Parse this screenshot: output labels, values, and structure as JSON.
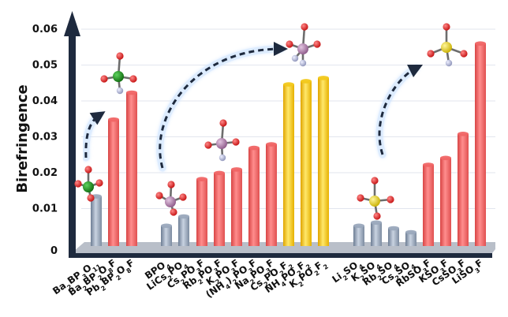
{
  "chart_data": {
    "type": "bar",
    "ylabel": "Birefringence",
    "ylim": [
      0,
      0.06
    ],
    "ytick_labels": [
      "0",
      "0.01",
      "0.02",
      "0.03",
      "0.04",
      "0.05",
      "0.06"
    ],
    "yticks": [
      0,
      0.01,
      0.02,
      0.03,
      0.04,
      0.05,
      0.06
    ],
    "grid": true,
    "legend": "none",
    "colors": {
      "gray": "#9aa8bc",
      "red": "#f06565",
      "gold": "#f2c81a",
      "axis": "#1e2a3e"
    },
    "categories": [
      "Ba2BP3O11",
      "Ba2BP2O8F",
      "Pb2BP2O8F",
      "BPO4",
      "LiCs2PO4",
      "Cs2PO3F",
      "Rb2PO3F",
      "K2PO3F",
      "(NH4)2PO3F",
      "Na2PO3F",
      "Cs2PO2F2",
      "NH4PO2F2",
      "K2PO2F2",
      "Li2SO4",
      "K2SO4",
      "Rb2SO4",
      "Cs2SO4",
      "RbSO3F",
      "KSO3F",
      "CsSO3F",
      "LiSO3F"
    ],
    "labels": [
      {
        "base": "Ba",
        "parts": [
          [
            "2",
            true
          ],
          [
            "BP",
            false
          ],
          [
            "3",
            true
          ],
          [
            "O",
            false
          ],
          [
            "11",
            true
          ]
        ]
      },
      {
        "base": "Ba",
        "parts": [
          [
            "2",
            true
          ],
          [
            "BP",
            false
          ],
          [
            "2",
            true
          ],
          [
            "O",
            false
          ],
          [
            "8",
            true
          ],
          [
            "F",
            false
          ]
        ]
      },
      {
        "base": "Pb",
        "parts": [
          [
            "2",
            true
          ],
          [
            "BP",
            false
          ],
          [
            "2",
            true
          ],
          [
            "O",
            false
          ],
          [
            "8",
            true
          ],
          [
            "F",
            false
          ]
        ]
      },
      {
        "base": "BPO",
        "parts": [
          [
            "4",
            true
          ]
        ]
      },
      {
        "base": "LiCs",
        "parts": [
          [
            "2",
            true
          ],
          [
            "PO",
            false
          ],
          [
            "4",
            true
          ]
        ]
      },
      {
        "base": "Cs",
        "parts": [
          [
            "2",
            true
          ],
          [
            "PO",
            false
          ],
          [
            "3",
            true
          ],
          [
            "F",
            false
          ]
        ]
      },
      {
        "base": "Rb",
        "parts": [
          [
            "2",
            true
          ],
          [
            "PO",
            false
          ],
          [
            "3",
            true
          ],
          [
            "F",
            false
          ]
        ]
      },
      {
        "base": "K",
        "parts": [
          [
            "2",
            true
          ],
          [
            "PO",
            false
          ],
          [
            "3",
            true
          ],
          [
            "F",
            false
          ]
        ]
      },
      {
        "base": "(NH",
        "parts": [
          [
            "4",
            true
          ],
          [
            ")",
            false
          ],
          [
            "2",
            true
          ],
          [
            "PO",
            false
          ],
          [
            "3",
            true
          ],
          [
            "F",
            false
          ]
        ]
      },
      {
        "base": "Na",
        "parts": [
          [
            "2",
            true
          ],
          [
            "PO",
            false
          ],
          [
            "3",
            true
          ],
          [
            "F",
            false
          ]
        ]
      },
      {
        "base": "Cs",
        "parts": [
          [
            "2",
            true
          ],
          [
            "PO",
            false
          ],
          [
            "2",
            true
          ],
          [
            "F",
            false
          ],
          [
            "2",
            true
          ]
        ]
      },
      {
        "base": "NH",
        "parts": [
          [
            "4",
            true
          ],
          [
            "PO",
            false
          ],
          [
            "2",
            true
          ],
          [
            "F",
            false
          ],
          [
            "2",
            true
          ]
        ]
      },
      {
        "base": "K",
        "parts": [
          [
            "2",
            true
          ],
          [
            "PO",
            false
          ],
          [
            "2",
            true
          ],
          [
            "F",
            false
          ],
          [
            "2",
            true
          ]
        ]
      },
      {
        "base": "Li",
        "parts": [
          [
            "2",
            true
          ],
          [
            "SO",
            false
          ],
          [
            "4",
            true
          ]
        ]
      },
      {
        "base": "K",
        "parts": [
          [
            "2",
            true
          ],
          [
            "SO",
            false
          ],
          [
            "4",
            true
          ]
        ]
      },
      {
        "base": "Rb",
        "parts": [
          [
            "2",
            true
          ],
          [
            "SO",
            false
          ],
          [
            "4",
            true
          ]
        ]
      },
      {
        "base": "Cs",
        "parts": [
          [
            "2",
            true
          ],
          [
            "SO",
            false
          ],
          [
            "4",
            true
          ]
        ]
      },
      {
        "base": "RbSO",
        "parts": [
          [
            "3",
            true
          ],
          [
            "F",
            false
          ]
        ]
      },
      {
        "base": "KSO",
        "parts": [
          [
            "3",
            true
          ],
          [
            "F",
            false
          ]
        ]
      },
      {
        "base": "CsSO",
        "parts": [
          [
            "3",
            true
          ],
          [
            "F",
            false
          ]
        ]
      },
      {
        "base": "LiSO",
        "parts": [
          [
            "3",
            true
          ],
          [
            "F",
            false
          ]
        ]
      }
    ],
    "values": [
      0.0134,
      0.0348,
      0.0423,
      0.0052,
      0.0078,
      0.0182,
      0.0199,
      0.0209,
      0.0269,
      0.0279,
      0.0446,
      0.0455,
      0.0464,
      0.0052,
      0.0061,
      0.0045,
      0.0034,
      0.0222,
      0.0241,
      0.0308,
      0.056
    ],
    "bar_colors": [
      "gray",
      "red",
      "red",
      "gray",
      "gray",
      "red",
      "red",
      "red",
      "red",
      "red",
      "gold",
      "gold",
      "gold",
      "gray",
      "gray",
      "gray",
      "gray",
      "red",
      "red",
      "red",
      "red"
    ],
    "molecule_icons": [
      {
        "type": "borate",
        "center": "B",
        "center_color": "#1a8f1a",
        "ligand_color": "#e01a1a"
      },
      {
        "type": "fluoroborate",
        "center": "B",
        "center_color": "#1a8f1a",
        "ligand_color": "#e01a1a",
        "substituent": "F"
      },
      {
        "type": "phosphate",
        "center": "P",
        "center_color": "#b889b4",
        "ligand_color": "#e01a1a"
      },
      {
        "type": "fluorophosphate",
        "center": "P",
        "center_color": "#b889b4",
        "ligand_color": "#e01a1a",
        "substituent": "F"
      },
      {
        "type": "difluorophosphate",
        "center": "P",
        "center_color": "#b889b4",
        "ligand_color": "#e01a1a",
        "substituent": "F"
      },
      {
        "type": "sulfate",
        "center": "S",
        "center_color": "#e8d61a",
        "ligand_color": "#e01a1a"
      },
      {
        "type": "fluorosulfate",
        "center": "S",
        "center_color": "#e8d61a",
        "ligand_color": "#e01a1a",
        "substituent": "F"
      }
    ]
  }
}
